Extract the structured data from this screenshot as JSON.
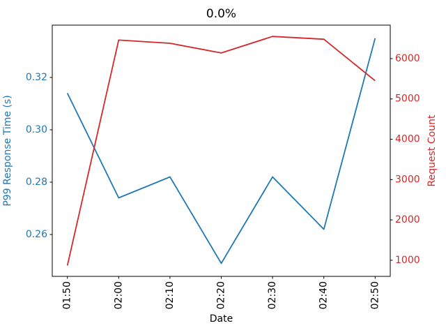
{
  "chart_data": {
    "type": "line",
    "title": "0.0%",
    "xlabel": "Date",
    "x_categories": [
      "01:50",
      "02:00",
      "02:10",
      "02:20",
      "02:30",
      "02:40",
      "02:50"
    ],
    "x_tick_rotation": 90,
    "grid": false,
    "legend": "none",
    "left_axis": {
      "label": "P99 Response Time (s)",
      "color": "#1f77b4",
      "ticks": [
        0.26,
        0.28,
        0.3,
        0.32
      ],
      "tick_labels": [
        "0.26",
        "0.28",
        "0.30",
        "0.32"
      ],
      "range": [
        0.244,
        0.34
      ]
    },
    "right_axis": {
      "label": "Request Count",
      "color": "#d62728",
      "ticks": [
        1000,
        2000,
        3000,
        4000,
        5000,
        6000
      ],
      "tick_labels": [
        "1000",
        "2000",
        "3000",
        "4000",
        "5000",
        "6000"
      ],
      "range": [
        600,
        6830
      ]
    },
    "series": [
      {
        "name": "P99 Response Time (s)",
        "axis": "left",
        "color": "#1f77b4",
        "values": [
          0.314,
          0.274,
          0.282,
          0.249,
          0.282,
          0.262,
          0.335
        ]
      },
      {
        "name": "Request Count",
        "axis": "right",
        "color": "#d62728",
        "values": [
          870,
          6460,
          6380,
          6140,
          6550,
          6480,
          5450
        ]
      }
    ],
    "axis_color": "#000000",
    "tick_color": "#000000",
    "title_color": "#000000",
    "xlabel_color": "#000000"
  }
}
